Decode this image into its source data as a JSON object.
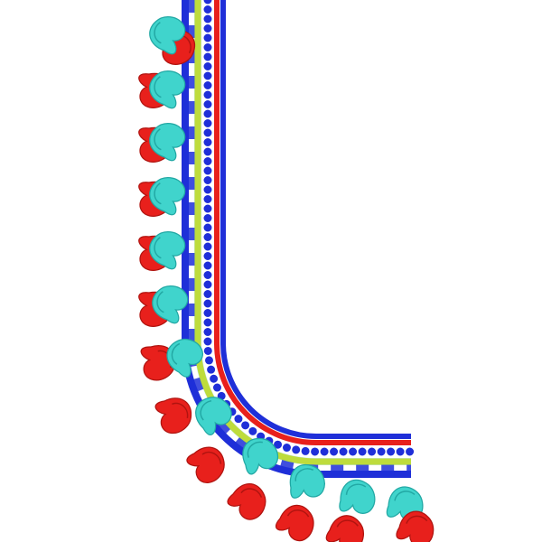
{
  "design": {
    "subject": "embroidery-neckline-border",
    "colors": {
      "blue": "#1f2fd8",
      "red": "#e8201c",
      "yellow": "#f2ee1a",
      "cyan": "#40d4cc",
      "cyan_dark": "#22a8a4",
      "red_dark": "#b01410",
      "background": "#ffffff"
    },
    "bands": [
      "outer-blue-zigzag",
      "yellow-line",
      "blue-dots",
      "red-line",
      "inner-blue-line"
    ],
    "motif": "paisley",
    "motif_colors_alternating": [
      "red",
      "cyan"
    ]
  }
}
